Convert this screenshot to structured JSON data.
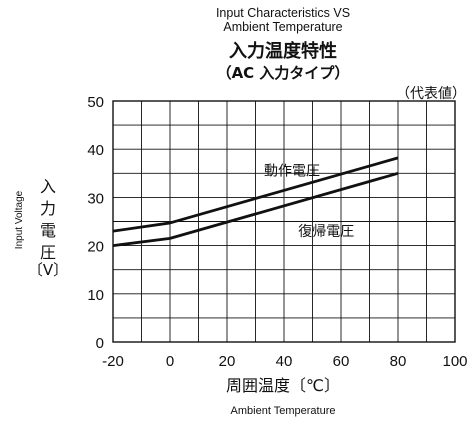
{
  "chart_data": {
    "type": "line",
    "title_en": "Input Characteristics VS\nAmbient Temperature",
    "title_jp": "入力温度特性",
    "subtitle_jp": "（AC 入力タイプ）",
    "note": "（代表値）",
    "xlabel_jp": "周囲温度〔℃〕",
    "xlabel_en": "Ambient Temperature",
    "ylabel_en": "Input Voltage",
    "ylabel_jp": "入力電圧",
    "ylabel_unit": "〔V〕",
    "xlim": [
      -20,
      100
    ],
    "ylim": [
      0,
      50
    ],
    "x_ticks": [
      "-20",
      "0",
      "20",
      "40",
      "60",
      "80",
      "100"
    ],
    "y_ticks": [
      "0",
      "10",
      "20",
      "30",
      "40",
      "50"
    ],
    "grid": true,
    "series": [
      {
        "name": "動作電圧",
        "x": [
          -20,
          0,
          80
        ],
        "y": [
          23,
          24.7,
          38.2
        ]
      },
      {
        "name": "復帰電圧",
        "x": [
          -20,
          0,
          80
        ],
        "y": [
          20,
          21.5,
          35
        ]
      }
    ]
  }
}
